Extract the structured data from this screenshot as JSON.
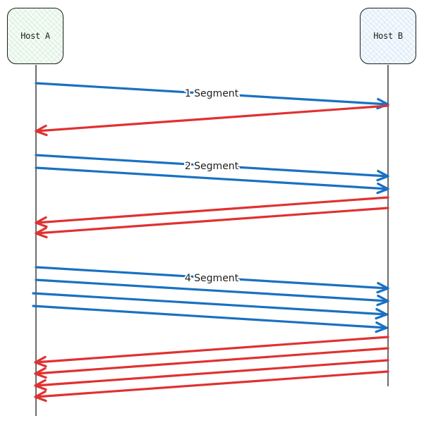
{
  "hosts": {
    "a": {
      "label": "Host A"
    },
    "b": {
      "label": "Host B"
    }
  },
  "rounds": [
    {
      "label": "1 Segment",
      "segments": 1,
      "acks": 1
    },
    {
      "label": "2 Segment",
      "segments": 2,
      "acks": 2
    },
    {
      "label": "4 Segment",
      "segments": 4,
      "acks": 4
    }
  ],
  "colors": {
    "segment_arrow": "#1971c2",
    "ack_arrow": "#e03131",
    "lifeline": "#1e1e1e",
    "host_a_fill": "#b2f2bb",
    "host_b_fill": "#a5d8ff"
  }
}
